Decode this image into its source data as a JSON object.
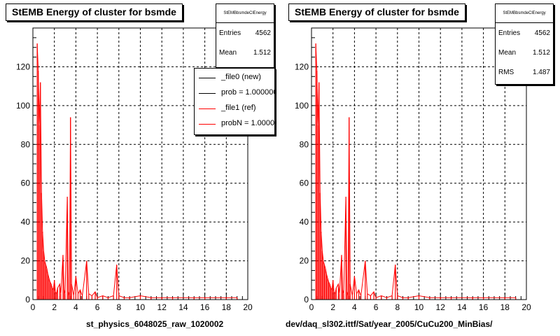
{
  "pads": [
    {
      "title": "StEMB Energy of cluster for bsmde",
      "stats": {
        "name": "StEMBbsmdeClEnergy",
        "rows": [
          {
            "key": "Entries",
            "value": "4562"
          },
          {
            "key": "Mean",
            "value": "1.512"
          }
        ]
      },
      "legend": [
        {
          "label": "_file0 (new)",
          "color": "#000000"
        },
        {
          "label": "prob = 1.000000",
          "color": "#000000"
        },
        {
          "label": "_file1 (ref)",
          "color": "#ff0000"
        },
        {
          "label": "probN = 1.000000",
          "color": "#ff0000"
        }
      ],
      "xcaption": "st_physics_6048025_raw_1020002"
    },
    {
      "title": "StEMB Energy of cluster for bsmde",
      "stats": {
        "name": "StEMBbsmdeClEnergy",
        "rows": [
          {
            "key": "Entries",
            "value": "4562"
          },
          {
            "key": "Mean",
            "value": "1.512"
          },
          {
            "key": "RMS",
            "value": "1.487"
          }
        ]
      },
      "legend": [],
      "xcaption": "dev/daq_sl302.ittf/Sat/year_2005/CuCu200_MinBias/"
    }
  ],
  "chart_data": [
    {
      "type": "histogram",
      "title": "StEMB Energy of cluster for bsmde",
      "xlabel": "st_physics_6048025_raw_1020002",
      "xlim": [
        0,
        20
      ],
      "ylim": [
        0,
        140
      ],
      "x_ticks": [
        0,
        2,
        4,
        6,
        8,
        10,
        12,
        14,
        16,
        18,
        20
      ],
      "y_ticks": [
        0,
        20,
        40,
        60,
        80,
        100,
        120
      ],
      "grid": true,
      "series": [
        {
          "color": "#ff0000",
          "points": [
            [
              0.4,
              132
            ],
            [
              0.5,
              118
            ],
            [
              0.6,
              90
            ],
            [
              0.7,
              112
            ],
            [
              0.8,
              55
            ],
            [
              0.9,
              35
            ],
            [
              1.0,
              25
            ],
            [
              1.1,
              20
            ],
            [
              1.2,
              18
            ],
            [
              1.3,
              16
            ],
            [
              1.4,
              13
            ],
            [
              1.5,
              11
            ],
            [
              1.6,
              9
            ],
            [
              1.7,
              8
            ],
            [
              1.8,
              6
            ],
            [
              1.9,
              5
            ],
            [
              2.0,
              10
            ],
            [
              2.1,
              4
            ],
            [
              2.2,
              3
            ],
            [
              2.3,
              6
            ],
            [
              2.5,
              8
            ],
            [
              2.6,
              3
            ],
            [
              2.8,
              23
            ],
            [
              2.9,
              5
            ],
            [
              3.0,
              3
            ],
            [
              3.2,
              53
            ],
            [
              3.3,
              4
            ],
            [
              3.4,
              2
            ],
            [
              3.5,
              94
            ],
            [
              3.6,
              8
            ],
            [
              3.8,
              2
            ],
            [
              4.0,
              12
            ],
            [
              4.2,
              3
            ],
            [
              4.4,
              5
            ],
            [
              4.6,
              2
            ],
            [
              5.0,
              20
            ],
            [
              5.2,
              3
            ],
            [
              5.5,
              2
            ],
            [
              5.8,
              4
            ],
            [
              6.0,
              1
            ],
            [
              6.5,
              2
            ],
            [
              7.0,
              1
            ],
            [
              7.5,
              2
            ],
            [
              7.8,
              18
            ],
            [
              8.0,
              2
            ],
            [
              8.5,
              1
            ],
            [
              9.0,
              1
            ],
            [
              10.0,
              2
            ],
            [
              11.0,
              1
            ],
            [
              12.0,
              1
            ],
            [
              13.0,
              1
            ],
            [
              15.0,
              1
            ],
            [
              16.0,
              1
            ],
            [
              18.0,
              1
            ],
            [
              19.0,
              1
            ]
          ]
        }
      ]
    },
    {
      "type": "histogram",
      "title": "StEMB Energy of cluster for bsmde",
      "xlabel": "dev/daq_sl302.ittf/Sat/year_2005/CuCu200_MinBias/",
      "xlim": [
        0,
        20
      ],
      "ylim": [
        0,
        140
      ],
      "x_ticks": [
        0,
        2,
        4,
        6,
        8,
        10,
        12,
        14,
        16,
        18,
        20
      ],
      "y_ticks": [
        0,
        20,
        40,
        60,
        80,
        100,
        120
      ],
      "grid": true,
      "series": [
        {
          "color": "#ff0000",
          "points": [
            [
              0.4,
              132
            ],
            [
              0.5,
              118
            ],
            [
              0.6,
              90
            ],
            [
              0.7,
              112
            ],
            [
              0.8,
              55
            ],
            [
              0.9,
              35
            ],
            [
              1.0,
              25
            ],
            [
              1.1,
              20
            ],
            [
              1.2,
              18
            ],
            [
              1.3,
              16
            ],
            [
              1.4,
              13
            ],
            [
              1.5,
              11
            ],
            [
              1.6,
              9
            ],
            [
              1.7,
              8
            ],
            [
              1.8,
              6
            ],
            [
              1.9,
              5
            ],
            [
              2.0,
              10
            ],
            [
              2.1,
              4
            ],
            [
              2.2,
              3
            ],
            [
              2.3,
              6
            ],
            [
              2.5,
              8
            ],
            [
              2.6,
              3
            ],
            [
              2.8,
              23
            ],
            [
              2.9,
              5
            ],
            [
              3.0,
              3
            ],
            [
              3.2,
              53
            ],
            [
              3.3,
              4
            ],
            [
              3.4,
              2
            ],
            [
              3.5,
              94
            ],
            [
              3.6,
              8
            ],
            [
              3.8,
              2
            ],
            [
              4.0,
              12
            ],
            [
              4.2,
              3
            ],
            [
              4.4,
              5
            ],
            [
              4.6,
              2
            ],
            [
              5.0,
              20
            ],
            [
              5.2,
              3
            ],
            [
              5.5,
              2
            ],
            [
              5.8,
              4
            ],
            [
              6.0,
              1
            ],
            [
              6.5,
              2
            ],
            [
              7.0,
              1
            ],
            [
              7.5,
              2
            ],
            [
              7.8,
              18
            ],
            [
              8.0,
              2
            ],
            [
              8.5,
              1
            ],
            [
              9.0,
              1
            ],
            [
              10.0,
              2
            ],
            [
              11.0,
              1
            ],
            [
              12.0,
              1
            ],
            [
              13.0,
              1
            ],
            [
              15.0,
              1
            ],
            [
              16.0,
              1
            ],
            [
              18.0,
              1
            ],
            [
              19.0,
              1
            ]
          ]
        }
      ]
    }
  ]
}
